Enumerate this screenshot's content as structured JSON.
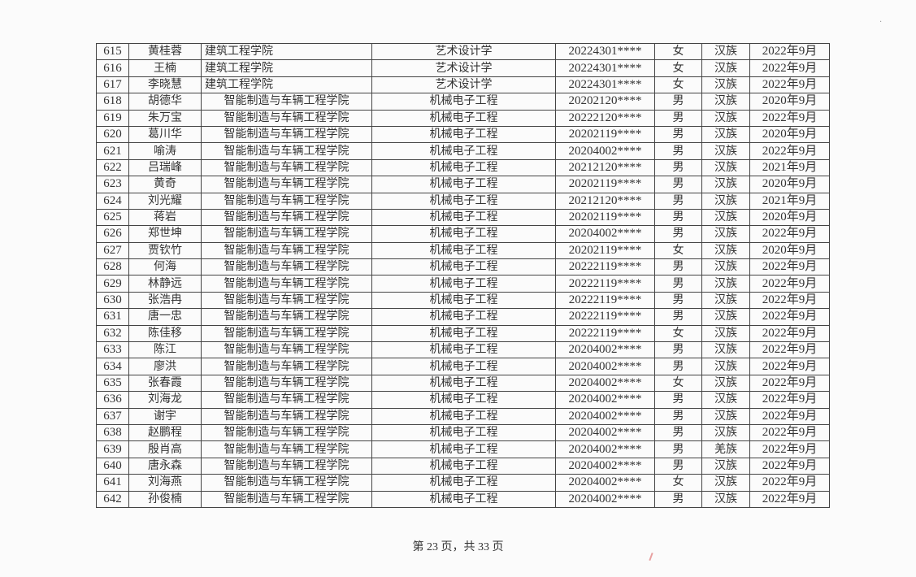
{
  "rows": [
    [
      "615",
      "黄桂蓉",
      "建筑工程学院",
      "艺术设计学",
      "20224301****",
      "女",
      "汉族",
      "2022年9月"
    ],
    [
      "616",
      "王楠",
      "建筑工程学院",
      "艺术设计学",
      "20224301****",
      "女",
      "汉族",
      "2022年9月"
    ],
    [
      "617",
      "李晓慧",
      "建筑工程学院",
      "艺术设计学",
      "20224301****",
      "女",
      "汉族",
      "2022年9月"
    ],
    [
      "618",
      "胡德华",
      "智能制造与车辆工程学院",
      "机械电子工程",
      "20202120****",
      "男",
      "汉族",
      "2020年9月"
    ],
    [
      "619",
      "朱万宝",
      "智能制造与车辆工程学院",
      "机械电子工程",
      "20222120****",
      "男",
      "汉族",
      "2022年9月"
    ],
    [
      "620",
      "葛川华",
      "智能制造与车辆工程学院",
      "机械电子工程",
      "20202119****",
      "男",
      "汉族",
      "2020年9月"
    ],
    [
      "621",
      "喻涛",
      "智能制造与车辆工程学院",
      "机械电子工程",
      "20204002****",
      "男",
      "汉族",
      "2022年9月"
    ],
    [
      "622",
      "吕瑞峰",
      "智能制造与车辆工程学院",
      "机械电子工程",
      "20212120****",
      "男",
      "汉族",
      "2021年9月"
    ],
    [
      "623",
      "黄奇",
      "智能制造与车辆工程学院",
      "机械电子工程",
      "20202119****",
      "男",
      "汉族",
      "2020年9月"
    ],
    [
      "624",
      "刘光耀",
      "智能制造与车辆工程学院",
      "机械电子工程",
      "20212120****",
      "男",
      "汉族",
      "2021年9月"
    ],
    [
      "625",
      "蒋岩",
      "智能制造与车辆工程学院",
      "机械电子工程",
      "20202119****",
      "男",
      "汉族",
      "2020年9月"
    ],
    [
      "626",
      "郑世坤",
      "智能制造与车辆工程学院",
      "机械电子工程",
      "20204002****",
      "男",
      "汉族",
      "2022年9月"
    ],
    [
      "627",
      "贾钦竹",
      "智能制造与车辆工程学院",
      "机械电子工程",
      "20202119****",
      "女",
      "汉族",
      "2020年9月"
    ],
    [
      "628",
      "何海",
      "智能制造与车辆工程学院",
      "机械电子工程",
      "20222119****",
      "男",
      "汉族",
      "2022年9月"
    ],
    [
      "629",
      "林静远",
      "智能制造与车辆工程学院",
      "机械电子工程",
      "20222119****",
      "男",
      "汉族",
      "2022年9月"
    ],
    [
      "630",
      "张浩冉",
      "智能制造与车辆工程学院",
      "机械电子工程",
      "20222119****",
      "男",
      "汉族",
      "2022年9月"
    ],
    [
      "631",
      "唐一忠",
      "智能制造与车辆工程学院",
      "机械电子工程",
      "20222119****",
      "男",
      "汉族",
      "2022年9月"
    ],
    [
      "632",
      "陈佳移",
      "智能制造与车辆工程学院",
      "机械电子工程",
      "20222119****",
      "女",
      "汉族",
      "2022年9月"
    ],
    [
      "633",
      "陈江",
      "智能制造与车辆工程学院",
      "机械电子工程",
      "20204002****",
      "男",
      "汉族",
      "2022年9月"
    ],
    [
      "634",
      "廖洪",
      "智能制造与车辆工程学院",
      "机械电子工程",
      "20204002****",
      "男",
      "汉族",
      "2022年9月"
    ],
    [
      "635",
      "张春霞",
      "智能制造与车辆工程学院",
      "机械电子工程",
      "20204002****",
      "女",
      "汉族",
      "2022年9月"
    ],
    [
      "636",
      "刘海龙",
      "智能制造与车辆工程学院",
      "机械电子工程",
      "20204002****",
      "男",
      "汉族",
      "2022年9月"
    ],
    [
      "637",
      "谢宇",
      "智能制造与车辆工程学院",
      "机械电子工程",
      "20204002****",
      "男",
      "汉族",
      "2022年9月"
    ],
    [
      "638",
      "赵鹏程",
      "智能制造与车辆工程学院",
      "机械电子工程",
      "20204002****",
      "男",
      "汉族",
      "2022年9月"
    ],
    [
      "639",
      "殷肖高",
      "智能制造与车辆工程学院",
      "机械电子工程",
      "20204002****",
      "男",
      "羌族",
      "2022年9月"
    ],
    [
      "640",
      "唐永森",
      "智能制造与车辆工程学院",
      "机械电子工程",
      "20204002****",
      "男",
      "汉族",
      "2022年9月"
    ],
    [
      "641",
      "刘海燕",
      "智能制造与车辆工程学院",
      "机械电子工程",
      "20204002****",
      "女",
      "汉族",
      "2022年9月"
    ],
    [
      "642",
      "孙俊楠",
      "智能制造与车辆工程学院",
      "机械电子工程",
      "20204002****",
      "男",
      "汉族",
      "2022年9月"
    ]
  ],
  "footer": {
    "page_label": "第 23 页，共 33 页"
  }
}
